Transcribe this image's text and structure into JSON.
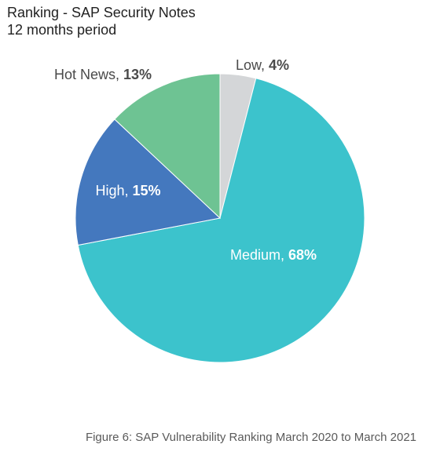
{
  "title": "Ranking - SAP Security Notes",
  "subtitle": "12 months period",
  "caption": "Figure 6: SAP Vulnerability Ranking March 2020 to March 2021",
  "chart_data": {
    "type": "pie",
    "title": "Ranking - SAP Security Notes",
    "subtitle": "12 months period",
    "slices": [
      {
        "label": "Low",
        "value": 4,
        "display": "4%",
        "color": "#d4d6d8"
      },
      {
        "label": "Medium",
        "value": 68,
        "display": "68%",
        "color": "#3cc3cc"
      },
      {
        "label": "High",
        "value": 15,
        "display": "15%",
        "color": "#4478be"
      },
      {
        "label": "Hot News",
        "value": 13,
        "display": "13%",
        "color": "#6ec393"
      }
    ],
    "start": "12 o'clock",
    "direction": "clockwise"
  }
}
